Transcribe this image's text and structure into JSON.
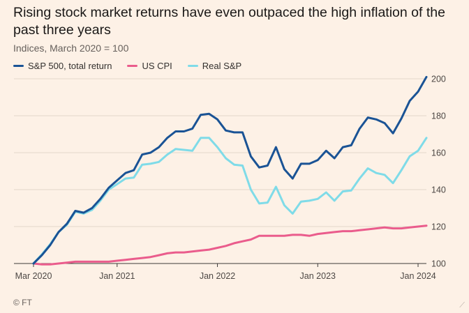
{
  "title": "Rising stock market returns have even outpaced the high inflation of the past three years",
  "subtitle": "Indices, March 2020 = 100",
  "source": "© FT",
  "colors": {
    "background": "#fdf1e6",
    "sp500": "#1a5395",
    "cpi": "#ea5c8c",
    "real": "#7fdbe8",
    "grid": "#e2d6cb"
  },
  "legend": [
    {
      "label": "S&P 500, total return",
      "color": "#1a5395"
    },
    {
      "label": "US CPI",
      "color": "#ea5c8c"
    },
    {
      "label": "Real S&P",
      "color": "#7fdbe8"
    }
  ],
  "chart_data": {
    "type": "line",
    "title": "Rising stock market returns have even outpaced the high inflation of the past three years",
    "subtitle": "Indices, March 2020 = 100",
    "x_start": "Mar 2020",
    "x_end": "Jan 2024",
    "x_ticks": [
      "Mar 2020",
      "Jan 2021",
      "Jan 2022",
      "Jan 2023",
      "Jan 2024"
    ],
    "ylim": [
      100,
      200
    ],
    "y_ticks": [
      100,
      120,
      140,
      160,
      180,
      200
    ],
    "grid": true,
    "legend_position": "top-left",
    "y_axis_position": "right",
    "series": [
      {
        "name": "S&P 500, total return",
        "color": "#1a5395",
        "values": [
          100,
          104.5,
          110,
          117,
          121.5,
          128.5,
          127.5,
          130,
          135,
          141,
          145,
          149,
          150.5,
          159,
          160,
          163,
          168,
          171.5,
          171.5,
          173,
          180.5,
          181,
          178,
          172,
          171,
          171,
          158,
          152,
          153,
          163,
          151,
          146,
          154,
          154,
          156,
          161,
          157,
          163,
          164,
          173,
          179,
          178,
          176,
          170.5,
          178.5,
          188,
          193,
          201
        ]
      },
      {
        "name": "US CPI",
        "color": "#ea5c8c",
        "values": [
          100,
          99.5,
          99.5,
          100,
          100.5,
          101,
          101,
          101,
          101,
          101,
          101.5,
          102,
          102.5,
          103,
          103.5,
          104.5,
          105.5,
          106,
          106,
          106.5,
          107,
          107.5,
          108.5,
          109.5,
          111,
          112,
          113,
          115,
          115,
          115,
          115,
          115.5,
          115.5,
          115,
          116,
          116.5,
          117,
          117.5,
          117.5,
          118,
          118.5,
          119,
          119.5,
          119,
          119,
          119.5,
          120,
          120.5
        ]
      },
      {
        "name": "Real S&P",
        "color": "#7fdbe8",
        "values": [
          100,
          105,
          110.5,
          117,
          121,
          128,
          127,
          129,
          134,
          140,
          143,
          146,
          146.5,
          153.5,
          154,
          155,
          159,
          162,
          161.5,
          161,
          168,
          168,
          163,
          157,
          153.5,
          153,
          140,
          132.5,
          133,
          141.5,
          131.5,
          127,
          133.5,
          134,
          135,
          138.5,
          134,
          139,
          139.5,
          146,
          151.5,
          149,
          148,
          143.5,
          150.5,
          158,
          161,
          168
        ]
      }
    ]
  }
}
